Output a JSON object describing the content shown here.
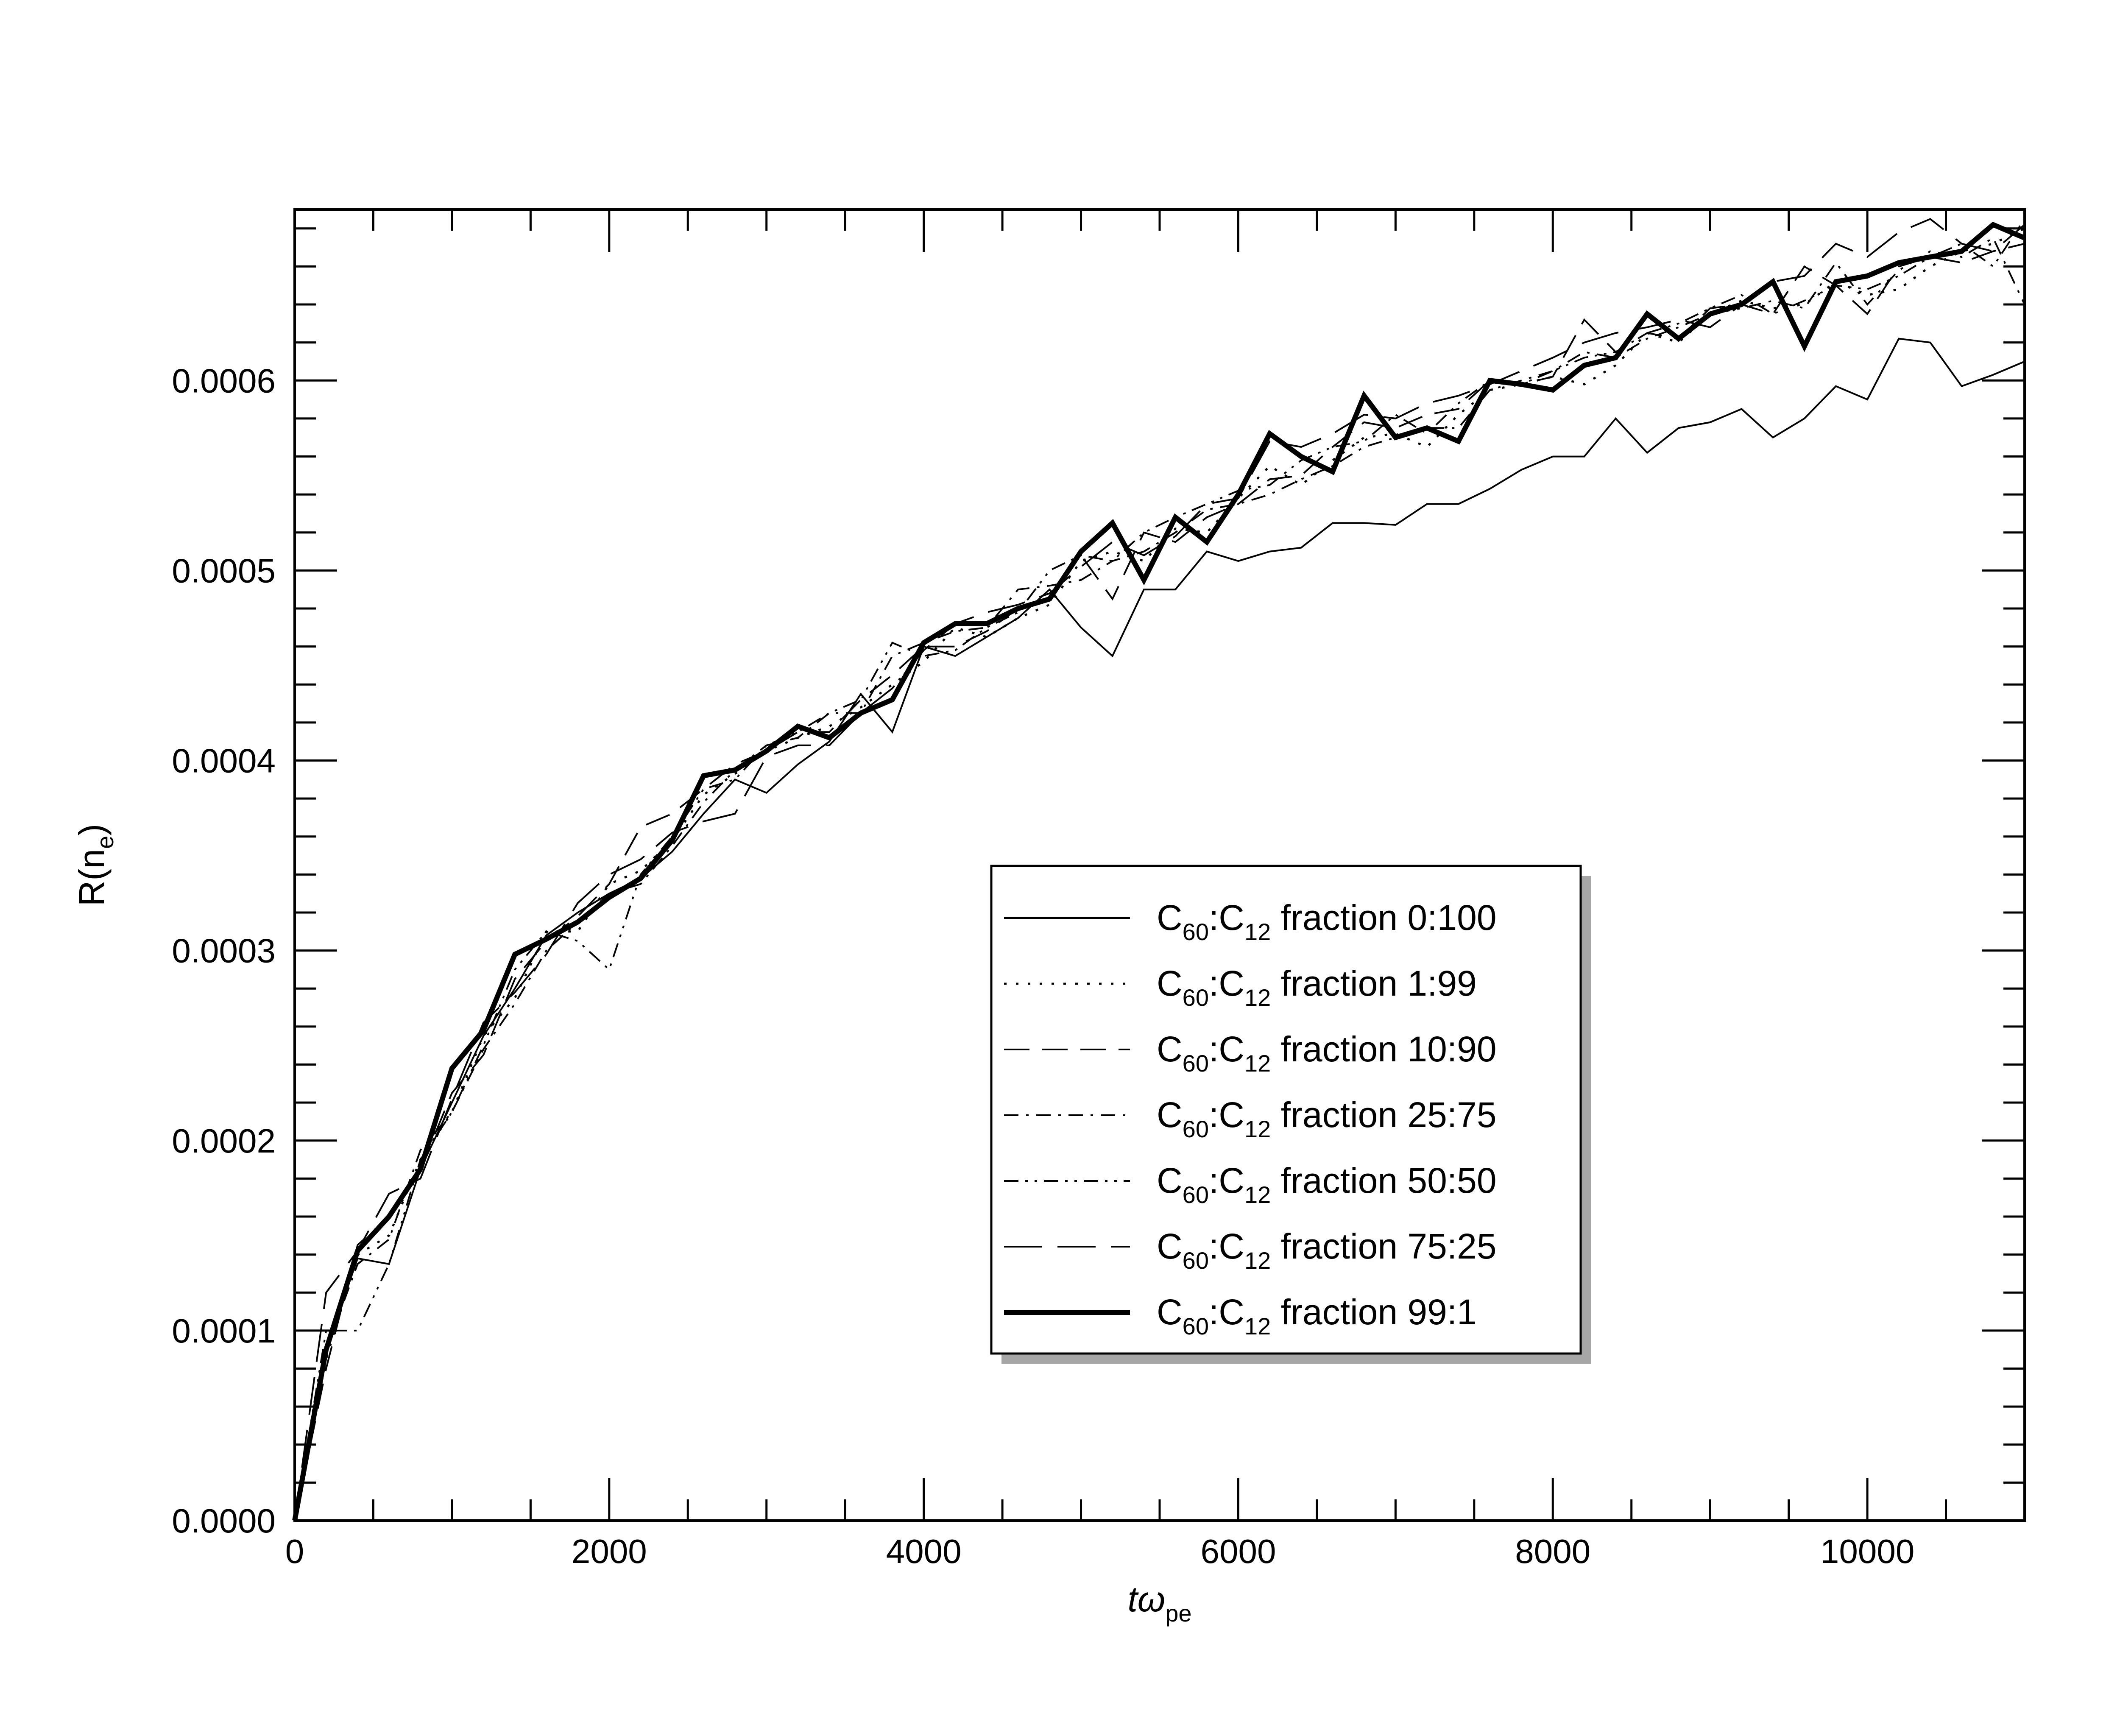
{
  "chart_data": {
    "type": "line",
    "xlabel": "tω",
    "xlabel_sub": "pe",
    "ylabel": "R(n",
    "ylabel_sub": "e",
    "ylabel_close": ")",
    "xlim": [
      0,
      11000
    ],
    "ylim": [
      0,
      0.00069
    ],
    "xticks": [
      0,
      2000,
      4000,
      6000,
      8000,
      10000
    ],
    "xtick_labels": [
      "0",
      "2000",
      "4000",
      "6000",
      "8000",
      "10000"
    ],
    "yticks": [
      0,
      0.0001,
      0.0002,
      0.0003,
      0.0004,
      0.0005,
      0.0006
    ],
    "ytick_labels": [
      "0.0000",
      "0.0001",
      "0.0002",
      "0.0003",
      "0.0004",
      "0.0005",
      "0.0006"
    ],
    "legend_position": "center-right",
    "x": [
      0,
      200,
      400,
      600,
      800,
      1000,
      1200,
      1400,
      1600,
      1800,
      2000,
      2200,
      2400,
      2600,
      2800,
      3000,
      3200,
      3400,
      3600,
      3800,
      4000,
      4200,
      4400,
      4600,
      4800,
      5000,
      5200,
      5400,
      5600,
      5800,
      6000,
      6200,
      6400,
      6600,
      6800,
      7000,
      7200,
      7400,
      7600,
      7800,
      8000,
      8200,
      8400,
      8600,
      8800,
      9000,
      9200,
      9400,
      9600,
      9800,
      10000,
      10200,
      10400,
      10600,
      10800,
      11000
    ],
    "series": [
      {
        "name": "fraction 0:100",
        "label_prefix": "C",
        "sub1": "60",
        "label_mid": ":C",
        "sub2": "12",
        "label_suffix": "  fraction 0:100",
        "style": "solid-thin",
        "values": [
          0,
          9e-05,
          0.000138,
          0.000135,
          0.000185,
          0.00022,
          0.000255,
          0.00028,
          0.000308,
          0.00032,
          0.00033,
          0.000338,
          0.000352,
          0.000372,
          0.00039,
          0.000383,
          0.000398,
          0.00041,
          0.000435,
          0.000415,
          0.00046,
          0.000455,
          0.000465,
          0.000475,
          0.00049,
          0.00047,
          0.000455,
          0.00049,
          0.00049,
          0.00051,
          0.000505,
          0.00051,
          0.000512,
          0.000525,
          0.000525,
          0.000524,
          0.000535,
          0.000535,
          0.000543,
          0.000553,
          0.00056,
          0.00056,
          0.00058,
          0.000562,
          0.000575,
          0.000578,
          0.000585,
          0.00057,
          0.00058,
          0.000597,
          0.00059,
          0.000622,
          0.00062,
          0.000597,
          0.000603,
          0.00061
        ]
      },
      {
        "name": "fraction 1:99",
        "label_prefix": "C",
        "sub1": "60",
        "label_mid": ":C",
        "sub2": "12",
        "label_suffix": " fraction 1:99",
        "style": "dotted",
        "values": [
          0,
          8.5e-05,
          0.00014,
          0.00015,
          0.00019,
          0.000215,
          0.000255,
          0.000275,
          0.00031,
          0.00031,
          0.000335,
          0.000342,
          0.000358,
          0.000382,
          0.000393,
          0.000405,
          0.000412,
          0.000418,
          0.000428,
          0.00044,
          0.000452,
          0.00047,
          0.000465,
          0.000475,
          0.000482,
          0.000505,
          0.00051,
          0.000505,
          0.000522,
          0.00052,
          0.000538,
          0.000555,
          0.000545,
          0.000558,
          0.00057,
          0.000572,
          0.000565,
          0.000582,
          0.000595,
          0.000598,
          0.000602,
          0.000598,
          0.000608,
          0.000625,
          0.00062,
          0.000635,
          0.000642,
          0.000638,
          0.00064,
          0.000652,
          0.000645,
          0.000648,
          0.00066,
          0.000668,
          0.000672,
          0.00068
        ]
      },
      {
        "name": "fraction 10:90",
        "label_prefix": "C",
        "sub1": "60",
        "label_mid": ":C",
        "sub2": "12",
        "label_suffix": " fraction 10:90",
        "style": "dashed",
        "values": [
          0,
          8e-05,
          0.000145,
          0.00016,
          0.000185,
          0.000225,
          0.000245,
          0.000285,
          0.000305,
          0.000318,
          0.000335,
          0.000365,
          0.000372,
          0.000385,
          0.000398,
          0.000405,
          0.000415,
          0.000415,
          0.000432,
          0.000445,
          0.00046,
          0.00046,
          0.000468,
          0.00048,
          0.000485,
          0.000508,
          0.000485,
          0.00052,
          0.000515,
          0.000528,
          0.000535,
          0.000548,
          0.00055,
          0.000565,
          0.000578,
          0.000575,
          0.000582,
          0.000585,
          0.0006,
          0.000598,
          0.000602,
          0.000632,
          0.000615,
          0.000625,
          0.000622,
          0.000638,
          0.00064,
          0.000635,
          0.00066,
          0.00065,
          0.000635,
          0.00066,
          0.000665,
          0.000662,
          0.000668,
          0.000672
        ]
      },
      {
        "name": "fraction 25:75",
        "label_prefix": "C",
        "sub1": "60",
        "label_mid": ":C",
        "sub2": "12",
        "label_suffix": " fraction 25:75",
        "style": "dash-dot",
        "values": [
          0,
          9e-05,
          0.000135,
          0.000148,
          0.000195,
          0.000215,
          0.000248,
          0.000272,
          0.0003,
          0.000315,
          0.00033,
          0.000335,
          0.000355,
          0.000378,
          0.000395,
          0.000408,
          0.000412,
          0.000425,
          0.000425,
          0.000455,
          0.000462,
          0.000468,
          0.00047,
          0.00049,
          0.000492,
          0.000495,
          0.000505,
          0.00051,
          0.00052,
          0.000532,
          0.000535,
          0.00054,
          0.000548,
          0.000555,
          0.000565,
          0.00057,
          0.000575,
          0.000575,
          0.000595,
          0.0006,
          0.000605,
          0.000615,
          0.000612,
          0.000622,
          0.000628,
          0.000635,
          0.000638,
          0.000642,
          0.000638,
          0.000662,
          0.00064,
          0.000658,
          0.000668,
          0.000665,
          0.000675,
          0.00064
        ]
      },
      {
        "name": "fraction 50:50",
        "label_prefix": "C",
        "sub1": "60",
        "label_mid": ":C",
        "sub2": "12",
        "label_suffix": " fraction 50:50",
        "style": "dash-dot-dot",
        "values": [
          0,
          0.0001,
          0.0001,
          0.000135,
          0.00019,
          0.000215,
          0.00025,
          0.00029,
          0.00031,
          0.000305,
          0.00029,
          0.00034,
          0.00036,
          0.000385,
          0.00039,
          0.000408,
          0.000415,
          0.000425,
          0.000432,
          0.000462,
          0.000455,
          0.000458,
          0.00047,
          0.000478,
          0.0005,
          0.000508,
          0.000505,
          0.00052,
          0.000528,
          0.000535,
          0.000542,
          0.000545,
          0.000558,
          0.000565,
          0.000568,
          0.000582,
          0.000572,
          0.000588,
          0.0006,
          0.000598,
          0.000605,
          0.000612,
          0.000615,
          0.000625,
          0.00063,
          0.000638,
          0.000645,
          0.000635,
          0.000642,
          0.00065,
          0.000648,
          0.000655,
          0.000665,
          0.000672,
          0.00066,
          0.000685
        ]
      },
      {
        "name": "fraction 75:25",
        "label_prefix": "C",
        "sub1": "60",
        "label_mid": ":C",
        "sub2": "12",
        "label_suffix": " fraction 75:25",
        "style": "long-dashed",
        "values": [
          0,
          0.00012,
          0.000142,
          0.000172,
          0.00018,
          0.000222,
          0.000262,
          0.000278,
          0.000298,
          0.000325,
          0.00034,
          0.000348,
          0.000362,
          0.000368,
          0.000372,
          0.000402,
          0.000408,
          0.000408,
          0.000425,
          0.000438,
          0.000458,
          0.000472,
          0.000478,
          0.000482,
          0.000488,
          0.000502,
          0.000515,
          0.000508,
          0.000518,
          0.000535,
          0.000538,
          0.000568,
          0.000565,
          0.000572,
          0.000582,
          0.00058,
          0.000588,
          0.000592,
          0.000598,
          0.000605,
          0.000612,
          0.00062,
          0.000625,
          0.000628,
          0.000632,
          0.000628,
          0.00064,
          0.000652,
          0.000655,
          0.000672,
          0.000665,
          0.000678,
          0.000685,
          0.000672,
          0.000668,
          0.000682
        ]
      },
      {
        "name": "fraction 99:1",
        "label_prefix": "C",
        "sub1": "60",
        "label_mid": ":C",
        "sub2": "12",
        "label_suffix": " fraction 99:1",
        "style": "solid-thick",
        "values": [
          0,
          9e-05,
          0.000142,
          0.00016,
          0.000185,
          0.000238,
          0.000258,
          0.000298,
          0.000306,
          0.000315,
          0.000328,
          0.000338,
          0.000358,
          0.000392,
          0.000395,
          0.000405,
          0.000418,
          0.000412,
          0.000425,
          0.000432,
          0.000462,
          0.000472,
          0.000472,
          0.00048,
          0.000485,
          0.00051,
          0.000525,
          0.000495,
          0.000528,
          0.000515,
          0.00054,
          0.000572,
          0.00056,
          0.000552,
          0.000592,
          0.00057,
          0.000575,
          0.000568,
          0.0006,
          0.000598,
          0.000595,
          0.000608,
          0.000612,
          0.000635,
          0.000622,
          0.000635,
          0.00064,
          0.000652,
          0.000618,
          0.000652,
          0.000655,
          0.000662,
          0.000665,
          0.000668,
          0.000682,
          0.000675
        ]
      }
    ]
  }
}
